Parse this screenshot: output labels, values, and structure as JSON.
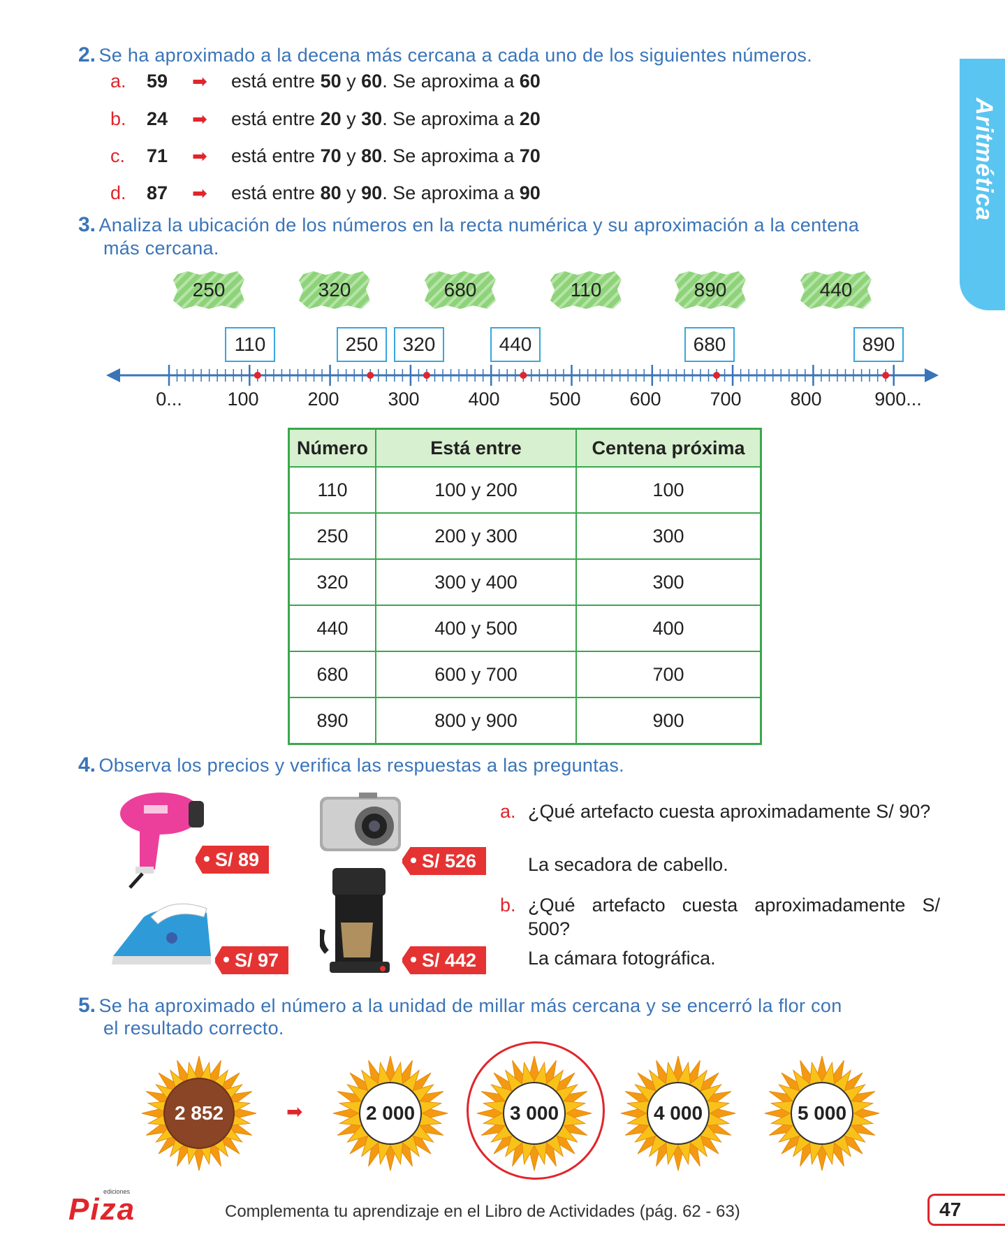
{
  "side_tab": {
    "label": "Aritmética"
  },
  "q2": {
    "number": "2.",
    "text": "Se ha aproximado a la decena más cercana a cada uno de los siguientes números.",
    "items": [
      {
        "letter": "a.",
        "num": "59",
        "pre": "está entre ",
        "low": "50",
        "mid": " y ",
        "high": "60",
        "post": ". Se aproxima a ",
        "result": "60"
      },
      {
        "letter": "b.",
        "num": "24",
        "pre": "está entre ",
        "low": "20",
        "mid": " y ",
        "high": "30",
        "post": ". Se aproxima a ",
        "result": "20"
      },
      {
        "letter": "c.",
        "num": "71",
        "pre": "está entre ",
        "low": "70",
        "mid": " y ",
        "high": "80",
        "post": ". Se aproxima a ",
        "result": "70"
      },
      {
        "letter": "d.",
        "num": "87",
        "pre": "está entre ",
        "low": "80",
        "mid": " y ",
        "high": "90",
        "post": ". Se aproxima a ",
        "result": "90"
      }
    ]
  },
  "q3": {
    "number": "3.",
    "text_line1": "Analiza la ubicación de los números en la recta numérica y su aproximación a la centena",
    "text_line2": "más cercana.",
    "green_tags": [
      "250",
      "320",
      "680",
      "110",
      "890",
      "440"
    ],
    "line_boxes": [
      "110",
      "250",
      "320",
      "440",
      "680",
      "890"
    ],
    "axis_labels": [
      "0...",
      "100",
      "200",
      "300",
      "400",
      "500",
      "600",
      "700",
      "800",
      "900..."
    ],
    "table": {
      "headers": [
        "Número",
        "Está entre",
        "Centena próxima"
      ],
      "rows": [
        [
          "110",
          "100 y 200",
          "100"
        ],
        [
          "250",
          "200 y 300",
          "300"
        ],
        [
          "320",
          "300 y 400",
          "300"
        ],
        [
          "440",
          "400 y 500",
          "400"
        ],
        [
          "680",
          "600 y 700",
          "700"
        ],
        [
          "890",
          "800 y 900",
          "900"
        ]
      ]
    }
  },
  "q4": {
    "number": "4.",
    "text": "Observa los precios y verifica las respuestas a las preguntas.",
    "prices": [
      "S/ 89",
      "S/ 526",
      "S/ 97",
      "S/ 442"
    ],
    "questions": [
      {
        "letter": "a.",
        "question": "¿Qué artefacto cuesta aproximadamente S/ 90?",
        "answer": "La secadora de cabello."
      },
      {
        "letter": "b.",
        "question": "¿Qué artefacto cuesta aproximadamente S/ 500?",
        "answer": "La cámara fotográfica."
      }
    ]
  },
  "q5": {
    "number": "5.",
    "text_line1": "Se ha aproximado el número a la unidad de millar más cercana y se encerró la flor con",
    "text_line2": "el resultado correcto.",
    "source": "2 852",
    "options": [
      "2 000",
      "3 000",
      "4 000",
      "5 000"
    ],
    "selected_index": 1
  },
  "footer": {
    "logo_small": "ediciones",
    "logo": "Piza",
    "text": "Complementa tu aprendizaje en el Libro de Actividades (pág. 62 - 63)",
    "page": "47"
  },
  "colors": {
    "blue": "#3a74b8",
    "red": "#e0252c",
    "green": "#3aa84c",
    "cyan": "#5bc5f2"
  }
}
